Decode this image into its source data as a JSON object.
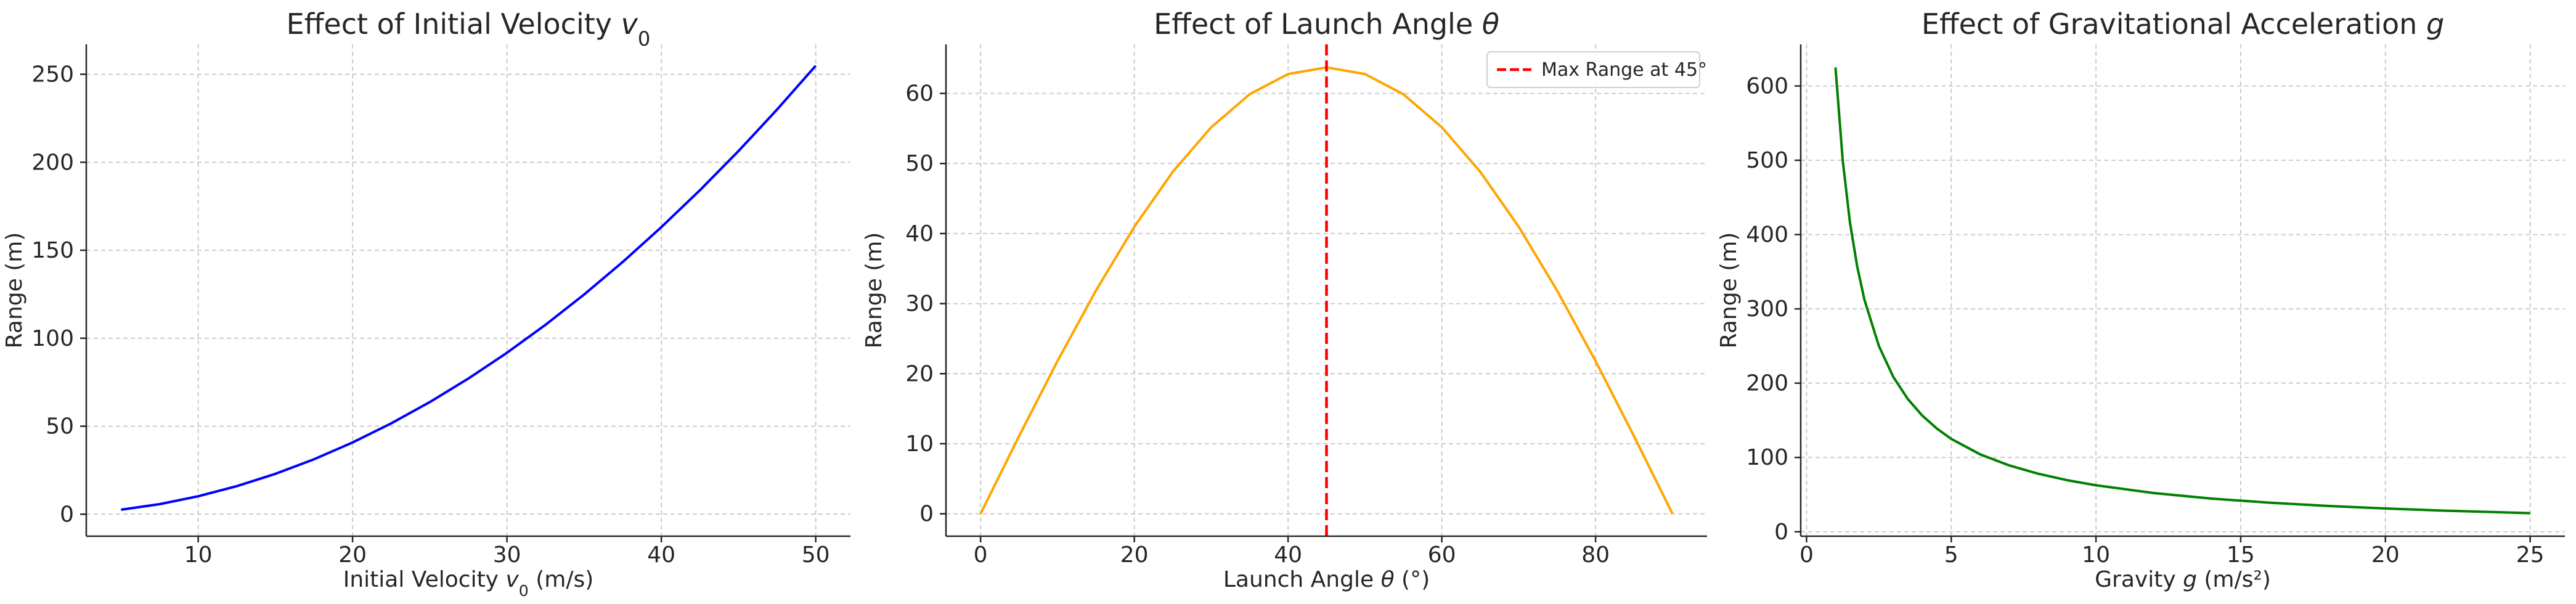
{
  "colors": {
    "blue": "#0000ff",
    "orange": "#ffa500",
    "green": "#008000",
    "red": "#ff0000"
  },
  "chart_data": [
    {
      "type": "line",
      "title": "Effect of Initial Velocity ",
      "title_symbol": "v",
      "title_subscript": "0",
      "xlabel": "Initial Velocity ",
      "xlabel_symbol": "v",
      "xlabel_subscript": "0",
      "xlabel_unit": " (m/s)",
      "ylabel": "Range (m)",
      "xlim": [
        2.75,
        52.25
      ],
      "ylim": [
        -12.5,
        267.0
      ],
      "xticks": [
        10,
        20,
        30,
        40,
        50
      ],
      "yticks": [
        0,
        50,
        100,
        150,
        200,
        250
      ],
      "grid": true,
      "legend": null,
      "series": [
        {
          "color": "blue",
          "x": [
            5,
            7.5,
            10,
            12.5,
            15,
            17.5,
            20,
            22.5,
            25,
            27.5,
            30,
            32.5,
            35,
            37.5,
            40,
            42.5,
            45,
            47.5,
            50
          ],
          "y": [
            2.55,
            5.73,
            10.19,
            15.93,
            22.94,
            31.22,
            40.77,
            51.61,
            63.71,
            77.09,
            91.74,
            107.67,
            124.87,
            143.35,
            163.1,
            184.12,
            206.42,
            230.0,
            254.84
          ]
        }
      ]
    },
    {
      "type": "line",
      "title": "Effect of Launch Angle ",
      "title_symbol": "θ",
      "xlabel": "Launch Angle ",
      "xlabel_symbol": "θ",
      "xlabel_unit": " (°)",
      "ylabel": "Range (m)",
      "xlim": [
        -4.5,
        94.5
      ],
      "ylim": [
        -3.2,
        67.0
      ],
      "xticks": [
        0,
        20,
        40,
        60,
        80
      ],
      "yticks": [
        0,
        10,
        20,
        30,
        40,
        50,
        60
      ],
      "grid": true,
      "legend": {
        "position": "upper right",
        "entries": [
          {
            "label": "Max Range at 45°",
            "color": "red",
            "style": "dashed"
          }
        ]
      },
      "series": [
        {
          "color": "orange",
          "x": [
            0,
            5,
            10,
            15,
            20,
            25,
            30,
            35,
            40,
            45,
            50,
            55,
            60,
            65,
            70,
            75,
            80,
            85,
            90
          ],
          "y": [
            0,
            11.07,
            21.79,
            31.86,
            40.96,
            48.81,
            55.17,
            59.88,
            62.77,
            63.71,
            62.77,
            59.88,
            55.17,
            48.81,
            40.96,
            31.86,
            21.79,
            11.07,
            0
          ]
        }
      ],
      "vline": {
        "x": 45,
        "color": "red",
        "style": "dashed"
      }
    },
    {
      "type": "line",
      "title": "Effect of Gravitational Acceleration ",
      "title_symbol": "g",
      "xlabel": "Gravity ",
      "xlabel_symbol": "g",
      "xlabel_unit": " (m/s²)",
      "ylabel": "Range (m)",
      "xlim": [
        -0.2,
        26.2
      ],
      "ylim": [
        -6,
        656
      ],
      "xticks": [
        0,
        5,
        10,
        15,
        20,
        25
      ],
      "yticks": [
        0,
        100,
        200,
        300,
        400,
        500,
        600
      ],
      "grid": true,
      "legend": null,
      "series": [
        {
          "color": "green",
          "x": [
            1,
            1.25,
            1.5,
            1.75,
            2,
            2.5,
            3,
            3.5,
            4,
            4.5,
            5,
            6,
            7,
            8,
            9,
            10,
            12,
            14,
            16,
            18,
            20,
            22,
            25
          ],
          "y": [
            625,
            500,
            416.7,
            357.1,
            312.5,
            250,
            208.3,
            178.6,
            156.3,
            138.9,
            125,
            104.2,
            89.3,
            78.1,
            69.4,
            62.5,
            52.1,
            44.6,
            39.1,
            34.7,
            31.3,
            28.4,
            25
          ]
        }
      ]
    }
  ]
}
